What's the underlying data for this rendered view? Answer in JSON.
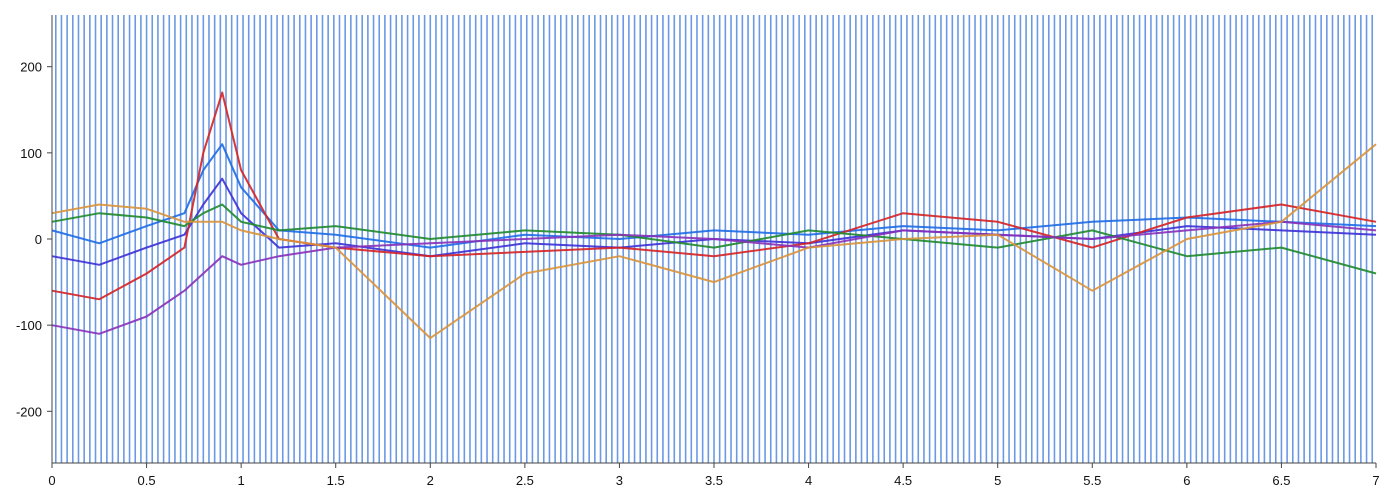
{
  "chart_data": {
    "type": "line",
    "title": "",
    "xlabel": "",
    "ylabel": "",
    "xlim": [
      0,
      7
    ],
    "ylim": [
      -260,
      260
    ],
    "grid": false,
    "legend": "none",
    "x_ticks": [
      0,
      0.5,
      1,
      1.5,
      2,
      2.5,
      3,
      3.5,
      4,
      4.5,
      5,
      5.5,
      6,
      6.5,
      7
    ],
    "x_tick_labels": [
      "0",
      "0.5",
      "1",
      "1.5",
      "2",
      "2.5",
      "3",
      "3.5",
      "4",
      "4.5",
      "5",
      "5.5",
      "6",
      "6.5",
      "7"
    ],
    "y_ticks": [
      -200,
      -100,
      0,
      100,
      200
    ],
    "y_tick_labels": [
      "-200",
      "-100",
      "0",
      "100",
      "200"
    ],
    "stimulus_marker_times": [
      0.02,
      0.05,
      0.08,
      0.11,
      0.14,
      0.17,
      0.2,
      0.23,
      0.26,
      0.29,
      0.32,
      0.35,
      0.38,
      0.41,
      0.44,
      0.47,
      0.5,
      0.53,
      0.56,
      0.59,
      0.62,
      0.65,
      0.68,
      0.71,
      0.74,
      0.77,
      0.8,
      0.83,
      0.86,
      0.89,
      0.92,
      0.95,
      0.98,
      1.01,
      1.04,
      1.07,
      1.1,
      1.13,
      1.16,
      1.19,
      1.22,
      1.25,
      1.28,
      1.31,
      1.34,
      1.37,
      1.4,
      1.43,
      1.46,
      1.49,
      1.52,
      1.55,
      1.58,
      1.61,
      1.64,
      1.67,
      1.7,
      1.73,
      1.76,
      1.79,
      1.82,
      1.85,
      1.88,
      1.91,
      1.94,
      1.97,
      2.0,
      2.03,
      2.06,
      2.09,
      2.12,
      2.15,
      2.18,
      2.21,
      2.24,
      2.27,
      2.3,
      2.33,
      2.36,
      2.39,
      2.42,
      2.45,
      2.48,
      2.51,
      2.54,
      2.57,
      2.6,
      2.63,
      2.66,
      2.69,
      2.72,
      2.75,
      2.78,
      2.81,
      2.84,
      2.87,
      2.9,
      2.93,
      2.96,
      2.99,
      3.02,
      3.05,
      3.08,
      3.11,
      3.14,
      3.17,
      3.2,
      3.23,
      3.26,
      3.29,
      3.32,
      3.35,
      3.38,
      3.41,
      3.44,
      3.47,
      3.5,
      3.53,
      3.56,
      3.59,
      3.62,
      3.65,
      3.68,
      3.71,
      3.74,
      3.77,
      3.8,
      3.83,
      3.86,
      3.89,
      3.92,
      3.95,
      3.98,
      4.01,
      4.04,
      4.07,
      4.1,
      4.13,
      4.16,
      4.19,
      4.22,
      4.25,
      4.28,
      4.31,
      4.34,
      4.37,
      4.4,
      4.43,
      4.46,
      4.49,
      4.52,
      4.55,
      4.58,
      4.61,
      4.64,
      4.67,
      4.7,
      4.73,
      4.76,
      4.79,
      4.82,
      4.85,
      4.88,
      4.91,
      4.94,
      4.97,
      5.0,
      5.03,
      5.06,
      5.09,
      5.12,
      5.15,
      5.18,
      5.21,
      5.24,
      5.27,
      5.3,
      5.33,
      5.36,
      5.39,
      5.42,
      5.45,
      5.48,
      5.51,
      5.54,
      5.57,
      5.6,
      5.63,
      5.66,
      5.69,
      5.72,
      5.75,
      5.78,
      5.81,
      5.84,
      5.87,
      5.9,
      5.93,
      5.96,
      5.99,
      6.02,
      6.05,
      6.08,
      6.11,
      6.14,
      6.17,
      6.2,
      6.23,
      6.26,
      6.29,
      6.32,
      6.35,
      6.38,
      6.41,
      6.44,
      6.47,
      6.5,
      6.53,
      6.56,
      6.59,
      6.62,
      6.65,
      6.68,
      6.71,
      6.74,
      6.77,
      6.8,
      6.83,
      6.86,
      6.89,
      6.92,
      6.95,
      6.98
    ],
    "series": [
      {
        "color": "#1e6be6",
        "x": [
          0,
          0.25,
          0.5,
          0.7,
          0.8,
          0.9,
          1.0,
          1.2,
          1.5,
          2.0,
          2.5,
          3.0,
          3.5,
          4.0,
          4.5,
          5.0,
          5.5,
          6.0,
          6.5,
          7.0
        ],
        "y": [
          10,
          -5,
          15,
          30,
          80,
          110,
          60,
          10,
          5,
          -10,
          5,
          0,
          10,
          5,
          15,
          10,
          20,
          25,
          20,
          15
        ]
      },
      {
        "color": "#3d2fd6",
        "x": [
          0,
          0.25,
          0.5,
          0.7,
          0.8,
          0.9,
          1.0,
          1.2,
          1.5,
          2.0,
          2.5,
          3.0,
          3.5,
          4.0,
          4.5,
          5.0,
          5.5,
          6.0,
          6.5,
          7.0
        ],
        "y": [
          -20,
          -30,
          -10,
          5,
          40,
          70,
          30,
          -10,
          -5,
          -20,
          -5,
          -10,
          0,
          -5,
          10,
          5,
          0,
          15,
          10,
          5
        ]
      },
      {
        "color": "#d62222",
        "x": [
          0,
          0.25,
          0.5,
          0.7,
          0.8,
          0.9,
          1.0,
          1.2,
          1.5,
          2.0,
          2.5,
          3.0,
          3.5,
          4.0,
          4.5,
          5.0,
          5.5,
          6.0,
          6.5,
          7.0
        ],
        "y": [
          -60,
          -70,
          -40,
          -10,
          100,
          170,
          80,
          0,
          -10,
          -20,
          -15,
          -10,
          -20,
          -5,
          30,
          20,
          -10,
          25,
          40,
          20
        ]
      },
      {
        "color": "#1f8a2a",
        "x": [
          0,
          0.25,
          0.5,
          0.7,
          0.8,
          0.9,
          1.0,
          1.2,
          1.5,
          2.0,
          2.5,
          3.0,
          3.5,
          4.0,
          4.5,
          5.0,
          5.5,
          6.0,
          6.5,
          7.0
        ],
        "y": [
          20,
          30,
          25,
          15,
          30,
          40,
          20,
          10,
          15,
          0,
          10,
          5,
          -10,
          10,
          0,
          -10,
          10,
          -20,
          -10,
          -40
        ]
      },
      {
        "color": "#8a30b8",
        "x": [
          0,
          0.25,
          0.5,
          0.7,
          0.8,
          0.9,
          1.0,
          1.2,
          1.5,
          2.0,
          2.5,
          3.0,
          3.5,
          4.0,
          4.5,
          5.0,
          5.5,
          6.0,
          6.5,
          7.0
        ],
        "y": [
          -100,
          -110,
          -90,
          -60,
          -40,
          -20,
          -30,
          -20,
          -10,
          -5,
          0,
          5,
          0,
          -10,
          10,
          5,
          0,
          10,
          20,
          10
        ]
      },
      {
        "color": "#d9943a",
        "x": [
          0,
          0.25,
          0.5,
          0.7,
          0.8,
          0.9,
          1.0,
          1.2,
          1.5,
          2.0,
          2.5,
          3.0,
          3.5,
          4.0,
          4.5,
          5.0,
          5.5,
          6.0,
          6.5,
          7.0
        ],
        "y": [
          30,
          40,
          35,
          20,
          20,
          20,
          10,
          0,
          -10,
          -115,
          -40,
          -20,
          -50,
          -10,
          0,
          5,
          -60,
          0,
          20,
          110
        ]
      }
    ],
    "colors": {
      "stimulus_marker": "#5b8fe0",
      "axis": "#444444"
    }
  }
}
